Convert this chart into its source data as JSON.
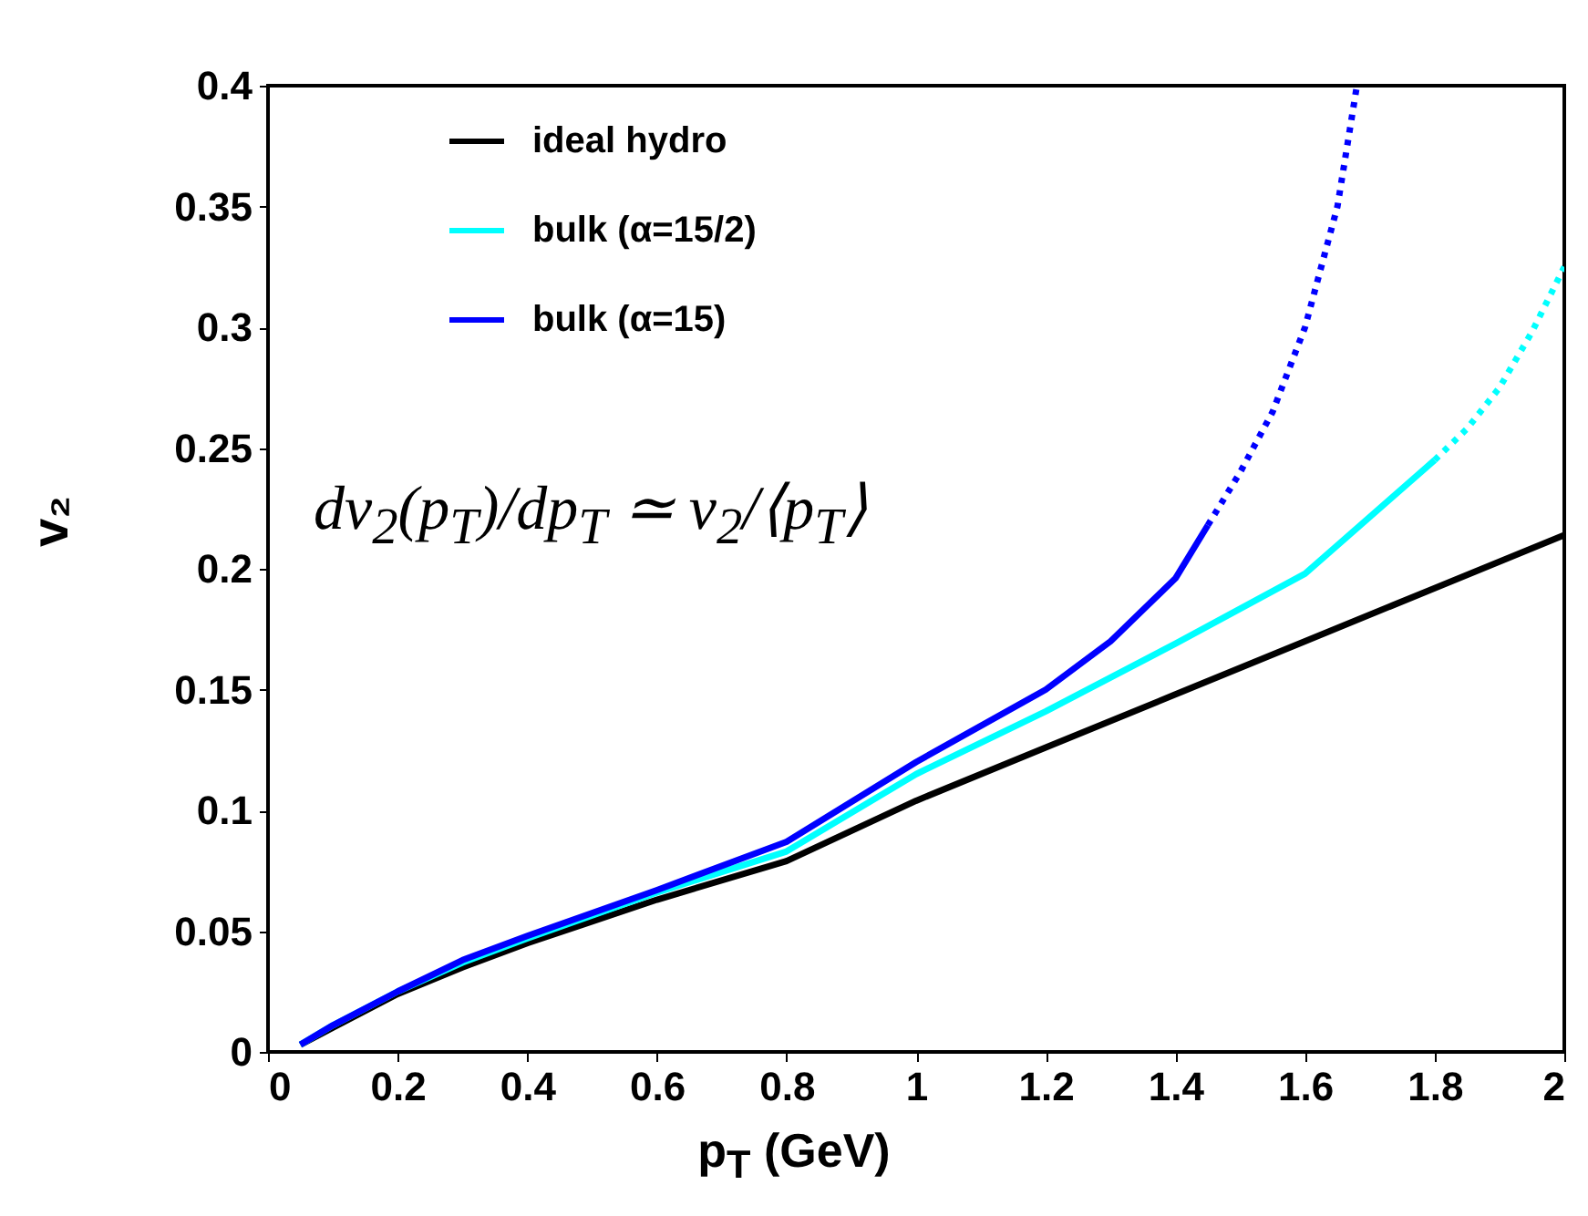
{
  "chart_data": {
    "type": "line",
    "xlabel": "p$_{T}$ (GeV)",
    "ylabel": "v₂",
    "annotations": [
      "dv$_{2}$(p$_{T}$)/dp$_{T}$ ≃ v$_{2}$/⟨p$_{T}$⟩"
    ],
    "xlim": [
      0,
      2
    ],
    "ylim": [
      0,
      0.4
    ],
    "xticks": [
      0,
      0.2,
      0.4,
      0.6,
      0.8,
      1,
      1.2,
      1.4,
      1.6,
      1.8,
      2
    ],
    "yticks": [
      0,
      0.05,
      0.1,
      0.15,
      0.2,
      0.25,
      0.3,
      0.35,
      0.4
    ],
    "legend": "top left",
    "grid": false,
    "line_style": "solid",
    "series": [
      {
        "name": "ideal hydro",
        "color": "#000000",
        "x": [
          0.05,
          0.1,
          0.2,
          0.3,
          0.4,
          0.6,
          0.8,
          1.0,
          1.2,
          1.4,
          1.6,
          1.8,
          2.0
        ],
        "values": [
          0.003,
          0.01,
          0.024,
          0.035,
          0.045,
          0.063,
          0.079,
          0.104,
          0.126,
          0.148,
          0.17,
          0.192,
          0.214
        ]
      },
      {
        "name": "bulk (α=15/2)",
        "color": "#00ffff",
        "x": [
          0.05,
          0.1,
          0.2,
          0.3,
          0.4,
          0.6,
          0.8,
          1.0,
          1.2,
          1.4,
          1.6,
          1.8
        ],
        "values": [
          0.003,
          0.011,
          0.025,
          0.037,
          0.047,
          0.066,
          0.083,
          0.115,
          0.141,
          0.169,
          0.198,
          0.245
        ]
      },
      {
        "color": "#00ffff",
        "line_style": "dotted",
        "x": [
          1.8,
          1.85,
          1.9,
          1.95,
          2.0
        ],
        "values": [
          0.245,
          0.258,
          0.275,
          0.298,
          0.325
        ]
      },
      {
        "name": "bulk (α=15)",
        "color": "#0000ff",
        "x": [
          0.05,
          0.1,
          0.2,
          0.3,
          0.4,
          0.6,
          0.8,
          1.0,
          1.2,
          1.3,
          1.4,
          1.45
        ],
        "values": [
          0.003,
          0.011,
          0.025,
          0.038,
          0.048,
          0.067,
          0.087,
          0.12,
          0.15,
          0.17,
          0.196,
          0.218
        ]
      },
      {
        "color": "#0000ff",
        "line_style": "dotted",
        "x": [
          1.45,
          1.5,
          1.55,
          1.6,
          1.65,
          1.68
        ],
        "values": [
          0.218,
          0.24,
          0.265,
          0.3,
          0.35,
          0.4
        ]
      }
    ]
  }
}
